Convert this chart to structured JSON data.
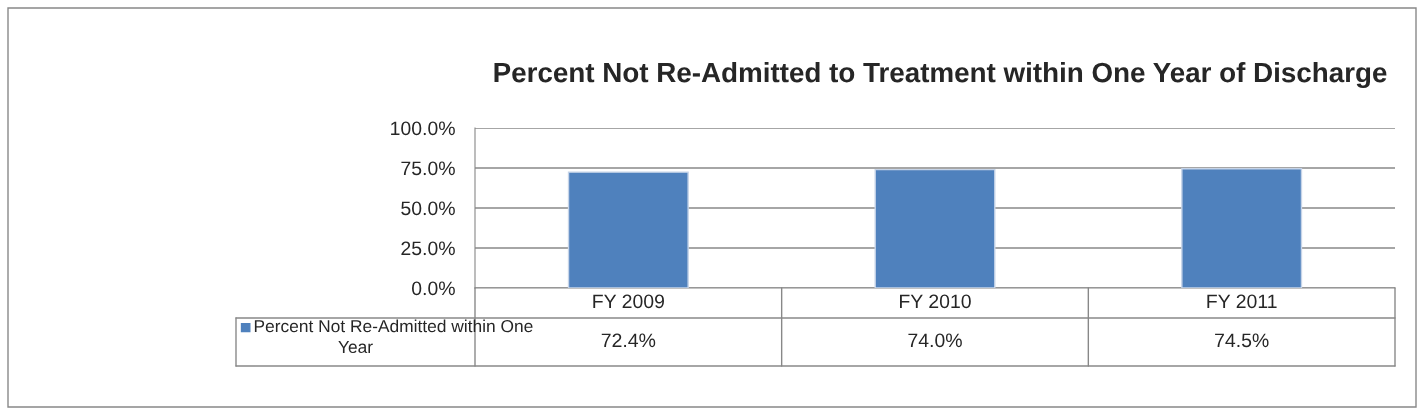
{
  "chart_data": {
    "type": "bar",
    "title": "Percent Not Re-Admitted to Treatment within One Year of Discharge",
    "categories": [
      "FY 2009",
      "FY 2010",
      "FY 2011"
    ],
    "series": [
      {
        "name": "Percent Not Re-Admitted within One Year",
        "color": "#4f81bd",
        "values": [
          72.4,
          74.0,
          74.5
        ],
        "value_labels": [
          "72.4%",
          "74.0%",
          "74.5%"
        ]
      }
    ],
    "ylim": [
      0,
      100
    ],
    "yticks": [
      {
        "value": 0,
        "label": "0.0%"
      },
      {
        "value": 25,
        "label": "25.0%"
      },
      {
        "value": 50,
        "label": "50.0%"
      },
      {
        "value": 75,
        "label": "75.0%"
      },
      {
        "value": 100,
        "label": "100.0%"
      }
    ],
    "grid": "y",
    "legend": "bottom"
  }
}
